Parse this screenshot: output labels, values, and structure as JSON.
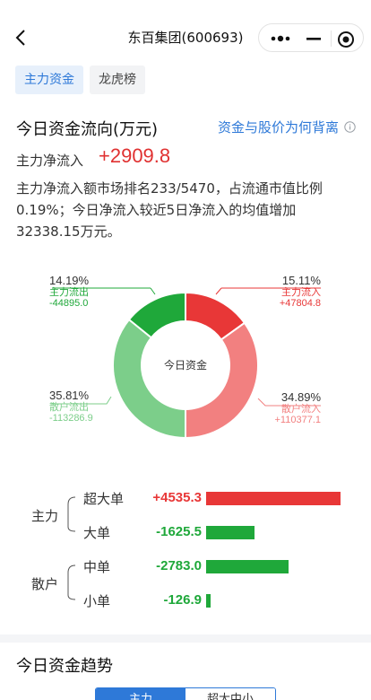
{
  "header": {
    "title": "东百集团(600693)"
  },
  "tabs": [
    "主力资金",
    "龙虎榜"
  ],
  "section": {
    "title": "今日资金流向(万元)",
    "link": "资金与股价为何背离"
  },
  "net_inflow": {
    "label": "主力净流入",
    "value": "+2909.8"
  },
  "description": "主力净流入额市场排名233/5470，占流通市值比例0.19%；今日净流入较近5日净流入的均值增加32338.15万元。",
  "donut": {
    "center_label": "今日资金",
    "colors": {
      "main_in": "#e83737",
      "retail_in": "#f28080",
      "retail_out": "#7cce8a",
      "main_out": "#1fa83a"
    },
    "segments": [
      {
        "key": "main_in",
        "pct": "15.11%",
        "name": "主力流入",
        "value": "+47804.8",
        "share": 15.11
      },
      {
        "key": "retail_in",
        "pct": "34.89%",
        "name": "散户流入",
        "value": "+110377.1",
        "share": 34.89
      },
      {
        "key": "retail_out",
        "pct": "35.81%",
        "name": "散户流出",
        "value": "-113286.9",
        "share": 35.81
      },
      {
        "key": "main_out",
        "pct": "14.19%",
        "name": "主力流出",
        "value": "-44895.0",
        "share": 14.19
      }
    ]
  },
  "breakdown": {
    "groups": [
      "主力",
      "散户"
    ],
    "rows": [
      {
        "name": "超大单",
        "value": "+4535.3",
        "amount": 4535.3
      },
      {
        "name": "大单",
        "value": "-1625.5",
        "amount": -1625.5
      },
      {
        "name": "中单",
        "value": "-2783.0",
        "amount": -2783.0
      },
      {
        "name": "小单",
        "value": "-126.9",
        "amount": -126.9
      }
    ],
    "colors": {
      "positive": "#e83737",
      "negative": "#1fa83a"
    }
  },
  "trend": {
    "title": "今日资金趋势",
    "segments": [
      "主力",
      "超大中小"
    ]
  }
}
